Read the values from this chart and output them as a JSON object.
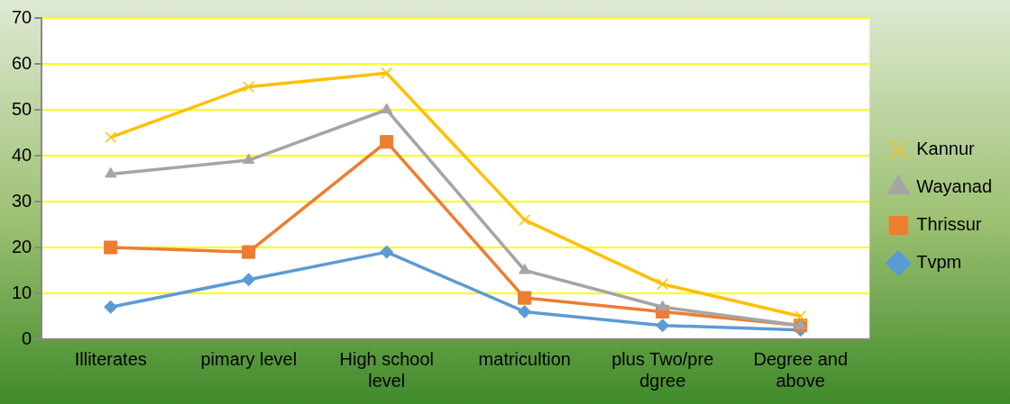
{
  "chart_data": {
    "type": "line",
    "categories": [
      "Illiterates",
      "pimary level",
      "High school level",
      "matricultion",
      "plus Two/pre dgree",
      "Degree and above"
    ],
    "series": [
      {
        "name": "Kannur",
        "color": "#ffc000",
        "marker": "cross",
        "values": [
          44,
          55,
          58,
          26,
          12,
          5
        ]
      },
      {
        "name": "Wayanad",
        "color": "#a5a5a5",
        "marker": "triangle",
        "values": [
          36,
          39,
          50,
          15,
          7,
          3
        ]
      },
      {
        "name": "Thrissur",
        "color": "#ed7d31",
        "marker": "square",
        "values": [
          20,
          19,
          43,
          9,
          6,
          3
        ]
      },
      {
        "name": "Tvpm",
        "color": "#5b9bd5",
        "marker": "diamond",
        "values": [
          7,
          13,
          19,
          6,
          3,
          2
        ]
      }
    ],
    "ylim": [
      0,
      70
    ],
    "yticks": [
      0,
      10,
      20,
      30,
      40,
      50,
      60,
      70
    ],
    "grid": "y",
    "legend": "right",
    "line_style": "solid"
  }
}
